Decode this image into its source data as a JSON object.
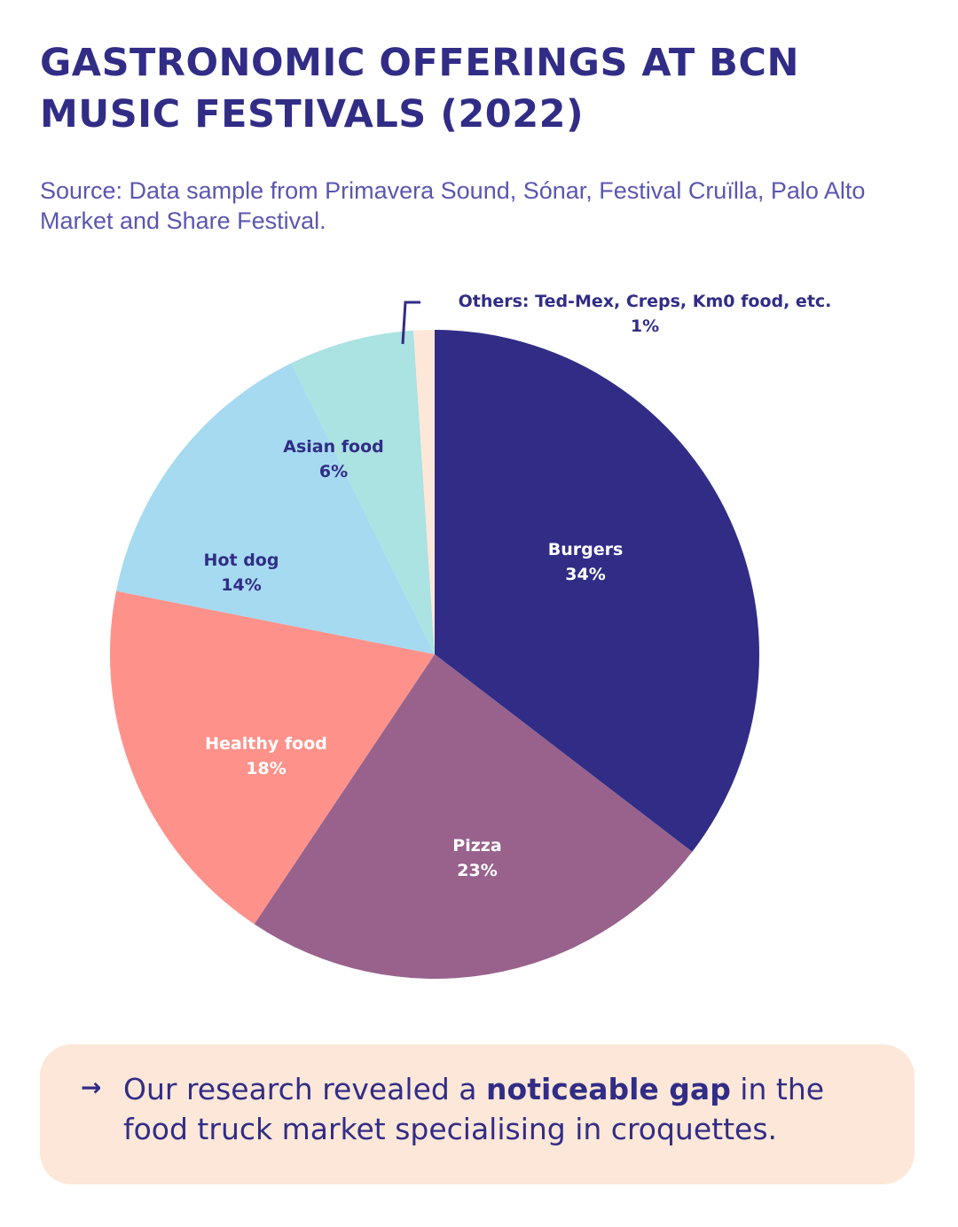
{
  "title": "GASTRONOMIC OFFERINGS AT BCN MUSIC FESTIVALS (2022)",
  "subtitle": "Source: Data sample from Primavera Sound, Sónar, Festival Cruïlla, Palo Alto Market and Share Festival.",
  "chart_data": {
    "type": "pie",
    "slices": [
      {
        "name": "Burgers",
        "label": "34%",
        "value": 34,
        "color": "#312d86",
        "text_color": "#ffffff"
      },
      {
        "name": "Pizza",
        "label": "23%",
        "value": 23,
        "color": "#98628c",
        "text_color": "#ffffff"
      },
      {
        "name": "Healthy food",
        "label": "18%",
        "value": 18,
        "color": "#fe928a",
        "text_color": "#ffffff"
      },
      {
        "name": "Hot dog",
        "label": "14%",
        "value": 14,
        "color": "#a5daf1",
        "text_color": "#312d86"
      },
      {
        "name": "Asian food",
        "label": "6%",
        "value": 6,
        "color": "#abe2e2",
        "text_color": "#312d86"
      },
      {
        "name": "Others: Ted-Mex, Creps, Km0 food, etc.",
        "label": "1%",
        "value": 1,
        "color": "#fde7d8",
        "text_color": "#312d86"
      }
    ]
  },
  "callout": {
    "arrow": "→",
    "text_before": "Our research revealed a ",
    "text_bold": "noticeable gap",
    "text_after": " in the food truck market specialising in croquettes."
  }
}
